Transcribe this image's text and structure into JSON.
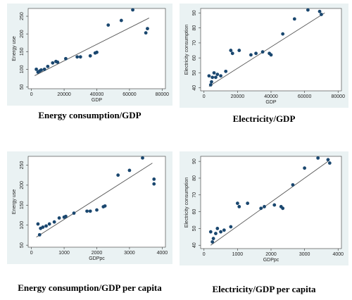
{
  "chart_data": [
    {
      "type": "scatter",
      "caption": "Energy consumption/GDP",
      "x_label": "GDP",
      "y_label": "Energy use",
      "x": [
        3000,
        4000,
        5000,
        6000,
        8000,
        10000,
        13000,
        15000,
        16000,
        21000,
        28000,
        30000,
        36000,
        39000,
        40000,
        47000,
        55000,
        62000,
        70000,
        71000
      ],
      "values": [
        100,
        92,
        95,
        98,
        100,
        108,
        118,
        122,
        120,
        130,
        135,
        135,
        138,
        146,
        148,
        225,
        238,
        268,
        203,
        215
      ],
      "fit_line": {
        "x": [
          2000,
          72000
        ],
        "y": [
          82,
          245
        ]
      },
      "xlim": [
        -2000,
        82000
      ],
      "ylim": [
        45,
        272
      ],
      "xticks": [
        0,
        20000,
        40000,
        60000,
        80000
      ],
      "yticks": [
        50,
        100,
        150,
        200,
        250
      ],
      "color": "#1a476f",
      "line_color": "#555555"
    },
    {
      "type": "scatter",
      "caption": "Electricity/GDP",
      "x_label": "GDP",
      "y_label": "Electricity consumption",
      "x": [
        3000,
        4000,
        4500,
        5000,
        6000,
        7000,
        8000,
        10000,
        13000,
        16000,
        17000,
        21000,
        28000,
        31000,
        35000,
        39000,
        40000,
        47000,
        54000,
        62000,
        69000,
        70000
      ],
      "values": [
        48,
        42,
        44,
        47,
        50,
        47,
        49,
        48,
        51,
        65,
        63,
        65,
        62,
        63,
        64,
        63,
        62,
        76,
        86,
        92,
        91,
        89
      ],
      "fit_line": {
        "x": [
          3000,
          72000
        ],
        "y": [
          41,
          90
        ]
      },
      "xlim": [
        -2000,
        82000
      ],
      "ylim": [
        38,
        93
      ],
      "xticks": [
        0,
        20000,
        40000,
        60000,
        80000
      ],
      "yticks": [
        40,
        50,
        60,
        70,
        80,
        90
      ],
      "color": "#1a476f",
      "line_color": "#555555"
    },
    {
      "type": "scatter",
      "caption": "Energy consumption/GDP per capita",
      "x_label": "GDPpc",
      "y_label": "Energy use",
      "x": [
        200,
        250,
        280,
        350,
        450,
        550,
        700,
        850,
        1000,
        1050,
        1300,
        1700,
        1800,
        2000,
        2200,
        2250,
        2650,
        3000,
        3400,
        3750,
        3750
      ],
      "values": [
        103,
        76,
        92,
        95,
        98,
        103,
        108,
        118,
        120,
        122,
        130,
        135,
        135,
        138,
        146,
        148,
        225,
        237,
        268,
        203,
        215
      ],
      "fit_line": {
        "x": [
          150,
          3700
        ],
        "y": [
          70,
          255
        ]
      },
      "xlim": [
        -100,
        4100
      ],
      "ylim": [
        45,
        272
      ],
      "xticks": [
        0,
        1000,
        2000,
        3000,
        4000
      ],
      "yticks": [
        50,
        100,
        150,
        200,
        250
      ],
      "color": "#1a476f",
      "line_color": "#555555"
    },
    {
      "type": "scatter",
      "caption": "Electricity/GDP per capita",
      "x_label": "GDPpc",
      "y_label": "Electricity consumption",
      "x": [
        200,
        250,
        280,
        350,
        400,
        500,
        600,
        800,
        1000,
        1050,
        1300,
        1700,
        1800,
        2100,
        2300,
        2350,
        2650,
        3000,
        3400,
        3700,
        3750
      ],
      "values": [
        48,
        42,
        44,
        47,
        50,
        48,
        49,
        51,
        65,
        63,
        65,
        62,
        63,
        64,
        63,
        62,
        76,
        86,
        92,
        91,
        89
      ],
      "fit_line": {
        "x": [
          200,
          3700
        ],
        "y": [
          40,
          90
        ]
      },
      "xlim": [
        -100,
        4100
      ],
      "ylim": [
        38,
        93
      ],
      "xticks": [
        0,
        1000,
        2000,
        3000,
        4000
      ],
      "yticks": [
        40,
        50,
        60,
        70,
        80,
        90
      ],
      "color": "#1a476f",
      "line_color": "#555555"
    }
  ]
}
